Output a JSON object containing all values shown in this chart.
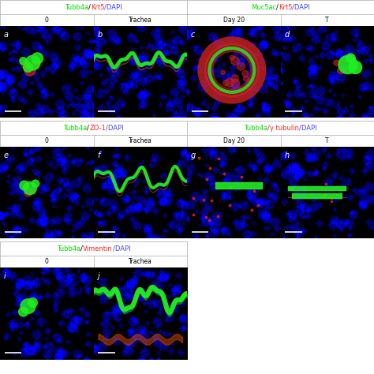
{
  "figure_width": 4.74,
  "figure_height": 4.74,
  "bg_color": "#ffffff",
  "panel_bg": "#000000",
  "rows": [
    {
      "section_titles": [
        {
          "text_parts": [
            {
              "text": "Tubb4a",
              "color": "#00dd00"
            },
            {
              "text": "/",
              "color": "#000000"
            },
            {
              "text": "Krt5",
              "color": "#ff2222"
            },
            {
              "text": "/DAPI",
              "color": "#4444ff"
            }
          ]
        },
        {
          "text_parts": [
            {
              "text": "Muc5ac",
              "color": "#00dd00"
            },
            {
              "text": "/",
              "color": "#000000"
            },
            {
              "text": "Krt5",
              "color": "#ff2222"
            },
            {
              "text": "/DAPI",
              "color": "#4444ff"
            }
          ]
        }
      ],
      "sub_labels": [
        "0",
        "Trachea",
        "Day 20",
        "T"
      ],
      "panel_labels": [
        "a",
        "b",
        "c",
        "d"
      ]
    },
    {
      "section_titles": [
        {
          "text_parts": [
            {
              "text": "Tubb4a",
              "color": "#00dd00"
            },
            {
              "text": "/",
              "color": "#000000"
            },
            {
              "text": "ZO-1",
              "color": "#ff2222"
            },
            {
              "text": "/DAPI",
              "color": "#4444ff"
            }
          ]
        },
        {
          "text_parts": [
            {
              "text": "Tubb4a",
              "color": "#00dd00"
            },
            {
              "text": "/γ tubulin",
              "color": "#ff2222"
            },
            {
              "text": "/DAPI",
              "color": "#4444ff"
            }
          ]
        }
      ],
      "sub_labels": [
        "0",
        "Trachea",
        "Day 20",
        "T"
      ],
      "panel_labels": [
        "e",
        "f",
        "g",
        "h"
      ]
    },
    {
      "section_titles": [
        {
          "text_parts": [
            {
              "text": "Tubb4a",
              "color": "#00dd00"
            },
            {
              "text": "/",
              "color": "#000000"
            },
            {
              "text": "Vimentin",
              "color": "#ff2222"
            },
            {
              "text": "/DAPI",
              "color": "#4444ff"
            }
          ]
        }
      ],
      "sub_labels": [
        "0",
        "Trachea"
      ],
      "panel_labels": [
        "i",
        "j"
      ]
    }
  ],
  "title_fontsize": 6,
  "sublabel_fontsize": 5.5,
  "panel_label_fontsize": 7
}
